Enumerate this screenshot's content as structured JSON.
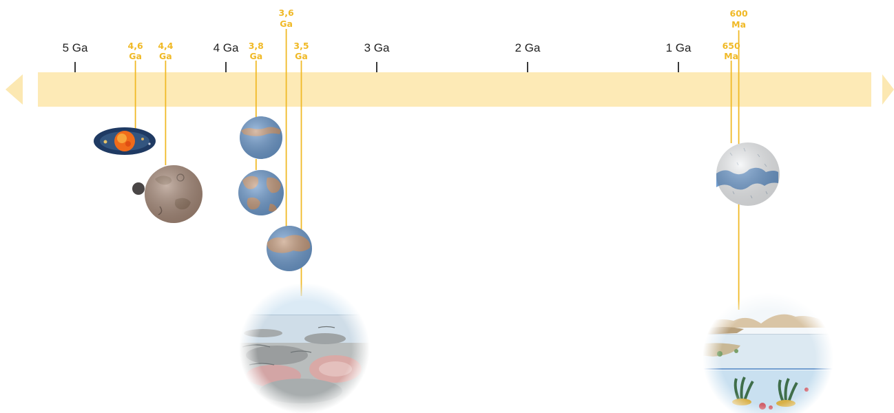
{
  "colors": {
    "band": "#fdeab6",
    "arrow": "#fce8b2",
    "accent": "#f0b926",
    "tick": "#222222"
  },
  "timeline": {
    "ticks": [
      {
        "label": "5 Ga",
        "ga": 5
      },
      {
        "label": "4 Ga",
        "ga": 4
      },
      {
        "label": "3 Ga",
        "ga": 3
      },
      {
        "label": "2 Ga",
        "ga": 2
      },
      {
        "label": "1 Ga",
        "ga": 1
      }
    ],
    "arrows": [
      "left-arrow-icon",
      "right-arrow-icon"
    ]
  },
  "events": [
    {
      "id": "e46",
      "value": "4,6",
      "unit": "Ga",
      "ga": 4.6,
      "image": "solar-nebula-icon"
    },
    {
      "id": "e44",
      "value": "4,4",
      "unit": "Ga",
      "ga": 4.4,
      "image": "early-earth-moon-icon"
    },
    {
      "id": "e38",
      "value": "3,8",
      "unit": "Ga",
      "ga": 3.8,
      "image": "ocean-earth-continents-icon"
    },
    {
      "id": "e36",
      "value": "3,6",
      "unit": "Ga",
      "ga": 3.6,
      "image": "earth-continent-icon"
    },
    {
      "id": "e35",
      "value": "3,5",
      "unit": "Ga",
      "ga": 3.5,
      "image": "stromatolite-shore-icon"
    },
    {
      "id": "e650",
      "value": "650",
      "unit": "Ma",
      "ga": 0.65,
      "image": "snowball-earth-icon"
    },
    {
      "id": "e600",
      "value": "600",
      "unit": "Ma",
      "ga": 0.6,
      "image": "ediacaran-sea-icon"
    }
  ]
}
